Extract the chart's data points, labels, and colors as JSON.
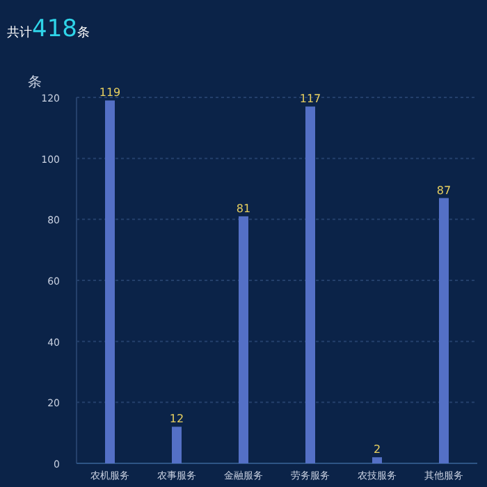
{
  "chart_data": {
    "type": "bar",
    "title": "共计418条",
    "ylabel": "条",
    "categories": [
      "农机服务",
      "农事服务",
      "金融服务",
      "劳务服务",
      "农技服务",
      "其他服务"
    ],
    "values": [
      119,
      12,
      81,
      117,
      2,
      87
    ],
    "color": "#5470c6",
    "ylim": [
      0,
      120
    ],
    "yticks": [
      0,
      20,
      40,
      60,
      80,
      100,
      120
    ],
    "grid": "y",
    "data_labels": true
  }
}
